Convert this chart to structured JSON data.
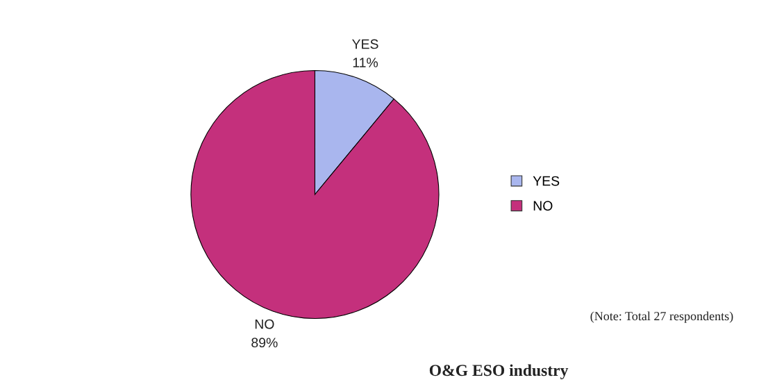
{
  "chart_data": {
    "type": "pie",
    "categories": [
      "YES",
      "NO"
    ],
    "values": [
      11,
      89
    ],
    "value_labels": [
      "11%",
      "89%"
    ],
    "colors": [
      "#a9b6ee",
      "#c4307c"
    ],
    "legend": "right",
    "annotations": [
      "(Note: Total 27 respondents)",
      "O&G ESO industry"
    ]
  }
}
